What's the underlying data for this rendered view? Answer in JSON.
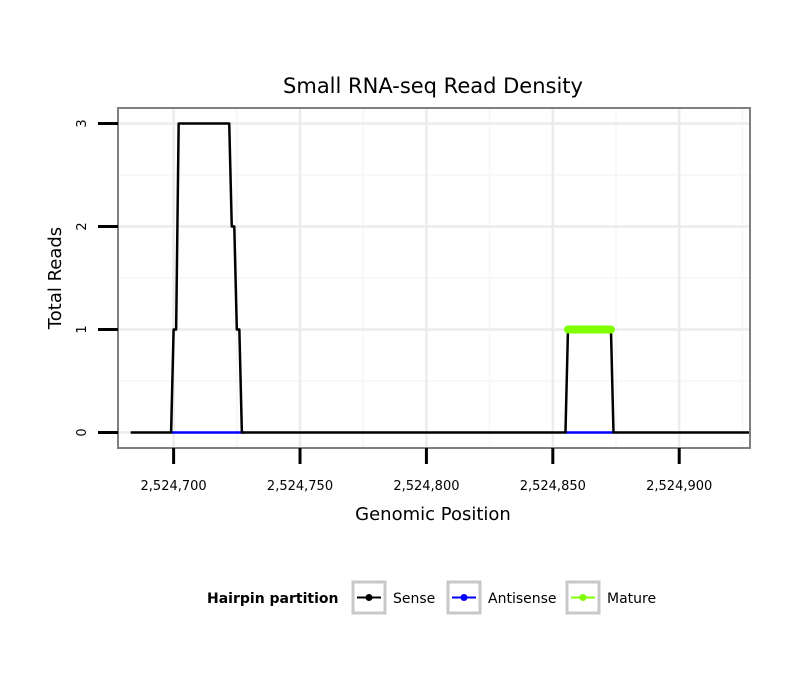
{
  "chart_data": {
    "type": "line",
    "title": "Small RNA-seq Read Density",
    "xlabel": "Genomic Position",
    "ylabel": "Total Reads",
    "xlim": [
      2524678,
      2524928
    ],
    "ylim": [
      -0.15,
      3.15
    ],
    "xticks": [
      2524700,
      2524750,
      2524800,
      2524850,
      2524900
    ],
    "xtick_labels": [
      "2,524,700",
      "2,524,750",
      "2,524,800",
      "2,524,850",
      "2,524,900"
    ],
    "yticks": [
      0,
      1,
      2,
      3
    ],
    "ytick_labels": [
      "0",
      "1",
      "2",
      "3"
    ],
    "grid": true,
    "legend": {
      "title": "Hairpin partition",
      "position": "bottom"
    },
    "series": [
      {
        "name": "Sense",
        "color": "#000000",
        "x": [
          2524683,
          2524699,
          2524700,
          2524701,
          2524702,
          2524703,
          2524722,
          2524723,
          2524724,
          2524725,
          2524726,
          2524727,
          2524728,
          2524855,
          2524856,
          2524873,
          2524874,
          2524928
        ],
        "y": [
          0,
          0,
          1,
          1,
          3,
          3,
          3,
          2,
          2,
          1,
          1,
          0,
          0,
          0,
          1,
          1,
          0,
          0
        ]
      },
      {
        "name": "Antisense",
        "color": "#0000ff",
        "x": [
          2524699,
          2524728,
          2524855,
          2524874
        ],
        "y": [
          0,
          0,
          0,
          0
        ],
        "segments": [
          [
            2524699,
            2524728
          ],
          [
            2524855,
            2524874
          ]
        ]
      },
      {
        "name": "Mature",
        "color": "#7fff00",
        "x": [
          2524856,
          2524873
        ],
        "y": [
          1,
          1
        ]
      }
    ]
  }
}
